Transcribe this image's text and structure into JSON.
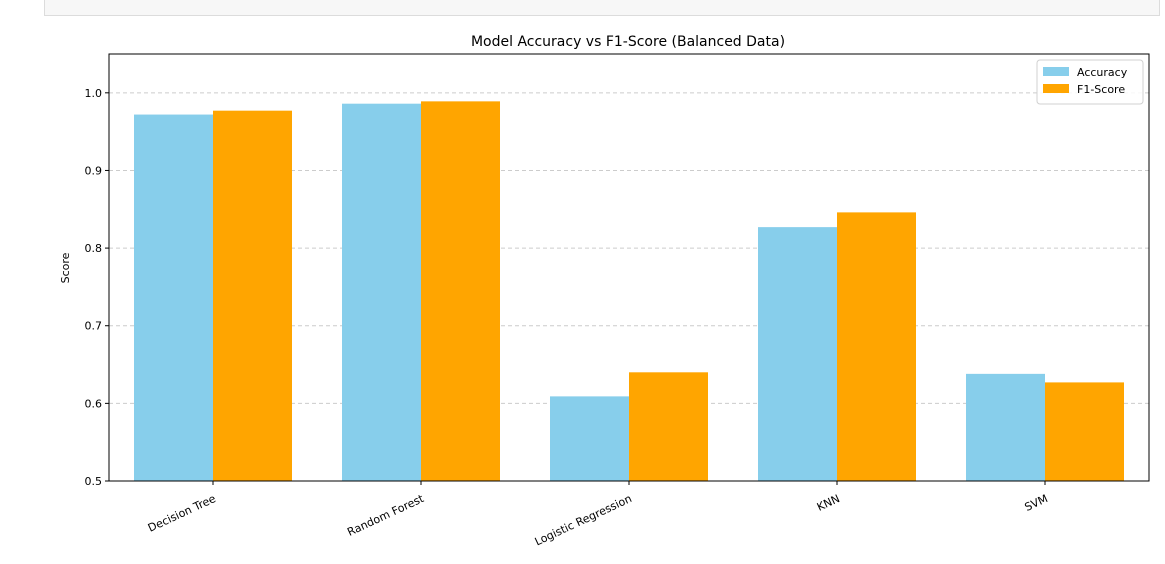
{
  "chart_data": {
    "type": "bar",
    "title": "Model Accuracy vs F1-Score (Balanced Data)",
    "xlabel": "",
    "ylabel": "Score",
    "ylim": [
      0.5,
      1.05
    ],
    "yticks": [
      "0.5",
      "0.6",
      "0.7",
      "0.8",
      "0.9",
      "1.0"
    ],
    "grid": "y-dashed",
    "legend_position": "top-right",
    "categories": [
      "Decision Tree",
      "Random Forest",
      "Logistic Regression",
      "KNN",
      "SVM"
    ],
    "series": [
      {
        "name": "Accuracy",
        "color": "#87ceeb",
        "values": [
          0.972,
          0.986,
          0.609,
          0.827,
          0.638
        ]
      },
      {
        "name": "F1-Score",
        "color": "#ffa500",
        "values": [
          0.977,
          0.989,
          0.64,
          0.846,
          0.627
        ]
      }
    ]
  }
}
